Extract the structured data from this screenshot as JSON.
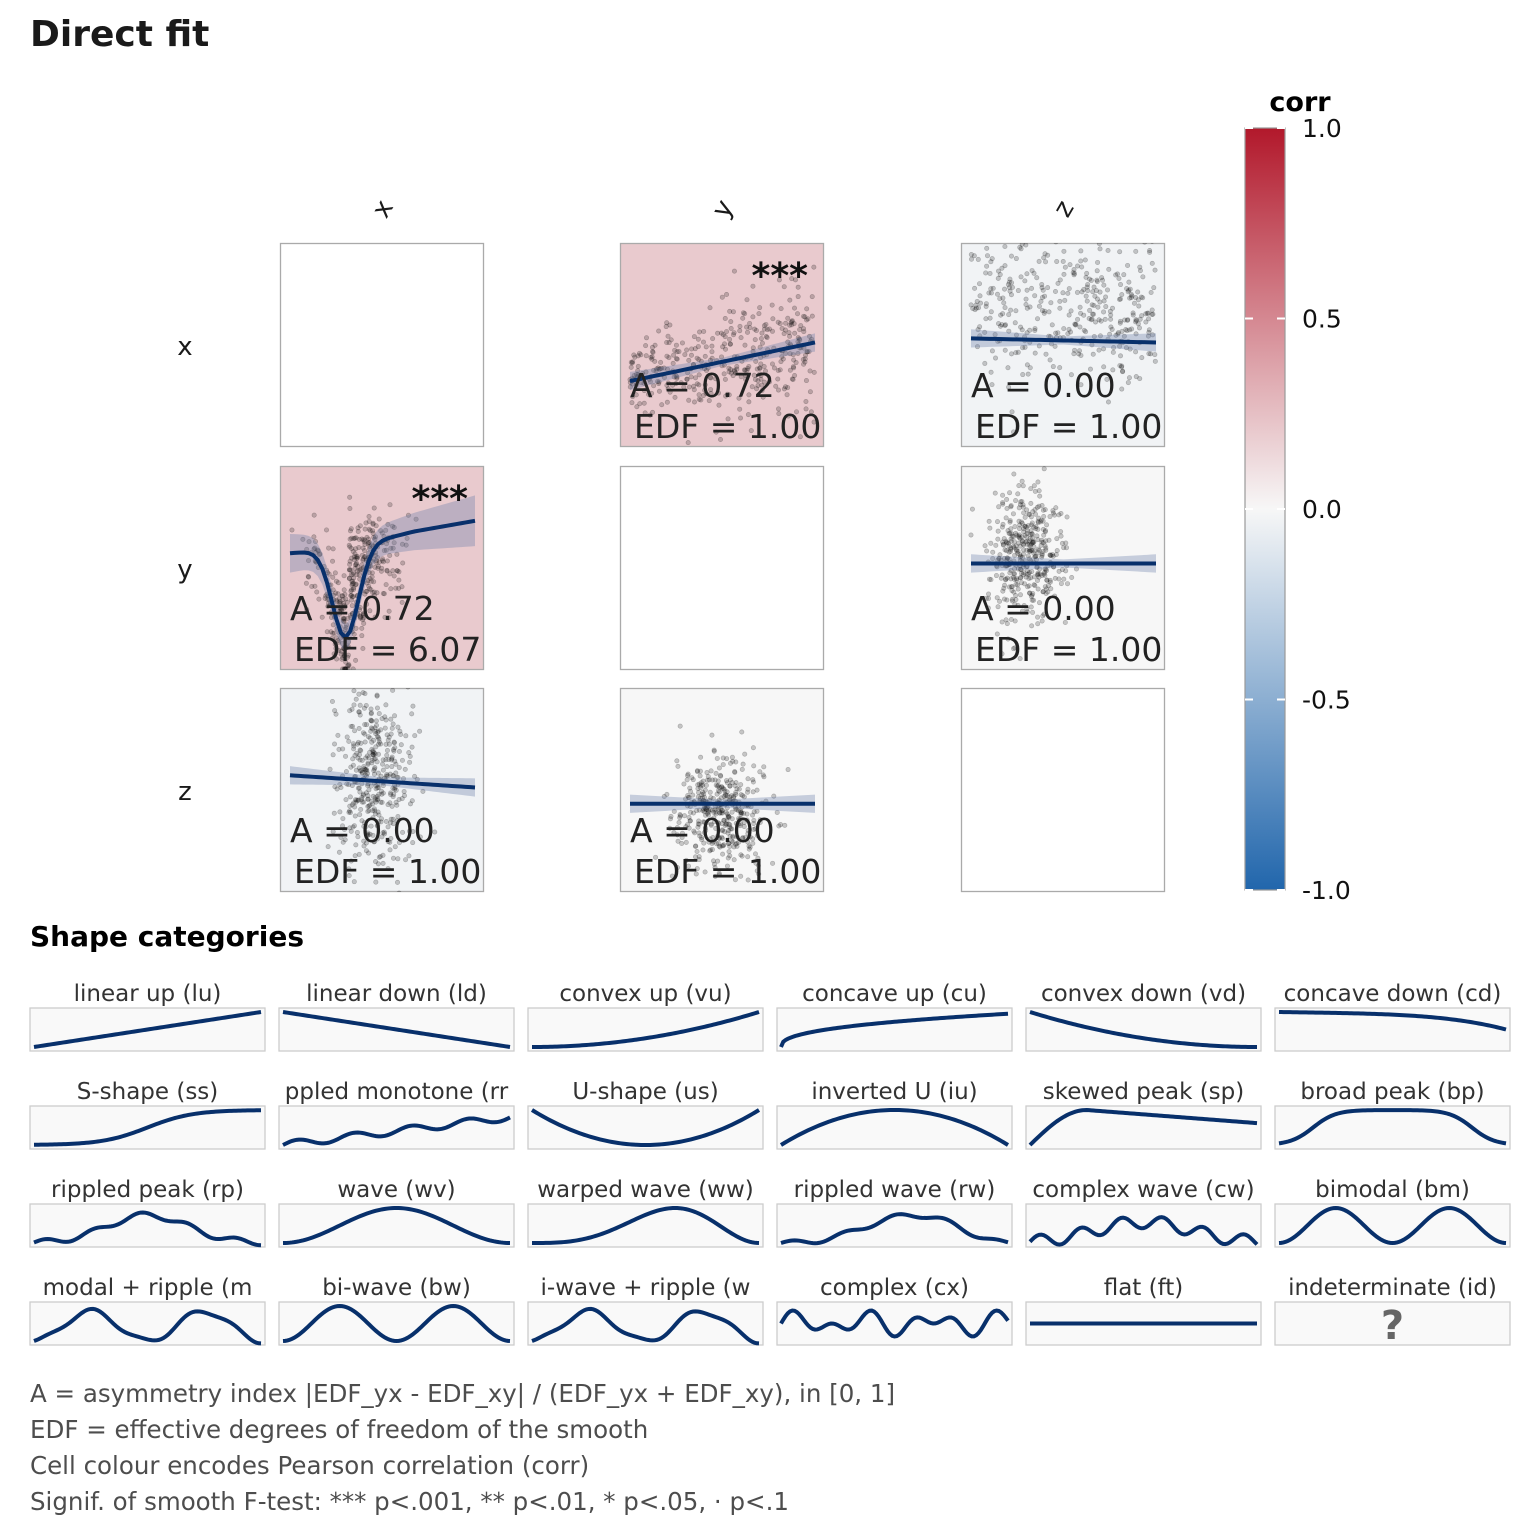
{
  "title": "Direct fit",
  "chart_data": {
    "type": "scatter-matrix",
    "variables": [
      "x",
      "y",
      "z"
    ],
    "cells": [
      {
        "row": "x",
        "col": "y",
        "A": "A = 0.72",
        "EDF": "EDF = 1.00",
        "signif": "***",
        "corr": 0.2,
        "fit": "linear"
      },
      {
        "row": "x",
        "col": "z",
        "A": "A = 0.00",
        "EDF": "EDF = 1.00",
        "signif": "",
        "corr": -0.03,
        "fit": "flat"
      },
      {
        "row": "y",
        "col": "x",
        "A": "A = 0.72",
        "EDF": "EDF = 6.07",
        "signif": "***",
        "corr": 0.2,
        "fit": "dip"
      },
      {
        "row": "y",
        "col": "z",
        "A": "A = 0.00",
        "EDF": "EDF = 1.00",
        "signif": "",
        "corr": 0.0,
        "fit": "flat"
      },
      {
        "row": "z",
        "col": "x",
        "A": "A = 0.00",
        "EDF": "EDF = 1.00",
        "signif": "",
        "corr": -0.03,
        "fit": "slight-down"
      },
      {
        "row": "z",
        "col": "y",
        "A": "A = 0.00",
        "EDF": "EDF = 1.00",
        "signif": "",
        "corr": 0.0,
        "fit": "flat"
      }
    ],
    "legend": {
      "title": "corr",
      "ticks": [
        "1.0",
        "0.5",
        "0.0",
        "-0.5",
        "-1.0"
      ],
      "range": [
        -1,
        1
      ],
      "colors": {
        "low": "#2166ac",
        "mid": "#f7f7f7",
        "high": "#b2182b"
      }
    }
  },
  "colors": {
    "line": "#08306b",
    "panel": "#f9f9f9"
  },
  "shapes": {
    "title": "Shape categories",
    "items": [
      {
        "label": "linear up (lu)",
        "code": "lu"
      },
      {
        "label": "linear down (ld)",
        "code": "ld"
      },
      {
        "label": "convex up (vu)",
        "code": "vu"
      },
      {
        "label": "concave up (cu)",
        "code": "cu"
      },
      {
        "label": "convex down (vd)",
        "code": "vd"
      },
      {
        "label": "concave down (cd)",
        "code": "cd"
      },
      {
        "label": "S-shape (ss)",
        "code": "ss"
      },
      {
        "label": "ppled monotone (rr",
        "code": "rm"
      },
      {
        "label": "U-shape (us)",
        "code": "us"
      },
      {
        "label": "inverted U (iu)",
        "code": "iu"
      },
      {
        "label": "skewed peak (sp)",
        "code": "sp"
      },
      {
        "label": "broad peak (bp)",
        "code": "bp"
      },
      {
        "label": "rippled peak (rp)",
        "code": "rp"
      },
      {
        "label": "wave (wv)",
        "code": "wv"
      },
      {
        "label": "warped wave (ww)",
        "code": "ww"
      },
      {
        "label": "rippled wave (rw)",
        "code": "rw"
      },
      {
        "label": "complex wave (cw)",
        "code": "cw"
      },
      {
        "label": "bimodal (bm)",
        "code": "bm"
      },
      {
        "label": "modal + ripple (m",
        "code": "mr"
      },
      {
        "label": "bi-wave (bw)",
        "code": "bw"
      },
      {
        "label": "i-wave + ripple (w",
        "code": "wr"
      },
      {
        "label": "complex (cx)",
        "code": "cx"
      },
      {
        "label": "flat (ft)",
        "code": "ft"
      },
      {
        "label": "indeterminate (id)",
        "code": "id",
        "glyph": "?"
      }
    ]
  },
  "notes": [
    "A = asymmetry index |EDF_yx - EDF_xy| / (EDF_yx + EDF_xy), in [0, 1]",
    "EDF = effective degrees of freedom of the smooth",
    "Cell colour encodes Pearson correlation (corr)",
    "Signif. of smooth F-test: *** p<.001, ** p<.01, * p<.05, · p<.1"
  ]
}
